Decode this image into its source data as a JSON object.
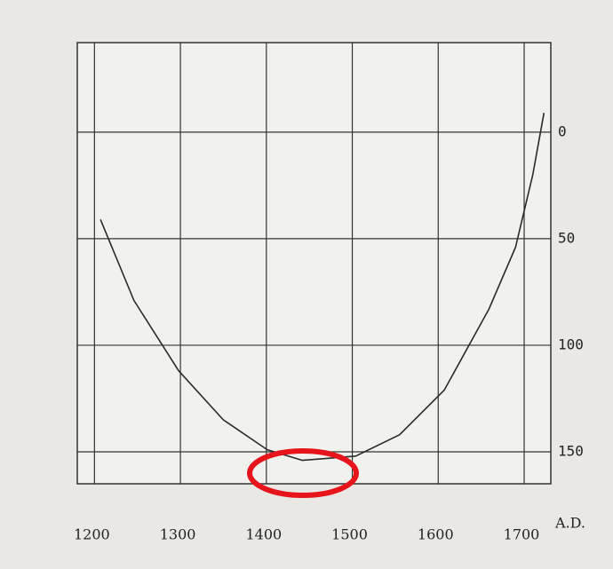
{
  "chart_data": {
    "type": "line",
    "x_label": "A.D.",
    "x": [
      1207,
      1246,
      1298,
      1350,
      1401,
      1442,
      1504,
      1555,
      1607,
      1659,
      1690,
      1710,
      1723
    ],
    "series": [
      {
        "color": "#2a2a2a",
        "values": [
          41,
          79,
          112,
          135,
          149,
          154,
          152,
          142,
          121,
          83,
          54,
          20,
          -9
        ]
      }
    ],
    "xlim": [
      1180,
      1731
    ],
    "xticks": [
      1200,
      1300,
      1400,
      1500,
      1600,
      1700
    ],
    "ylim": [
      -42,
      165
    ],
    "yticks": [
      0,
      50,
      100,
      150
    ],
    "y_inverted": true,
    "grid": true
  }
}
